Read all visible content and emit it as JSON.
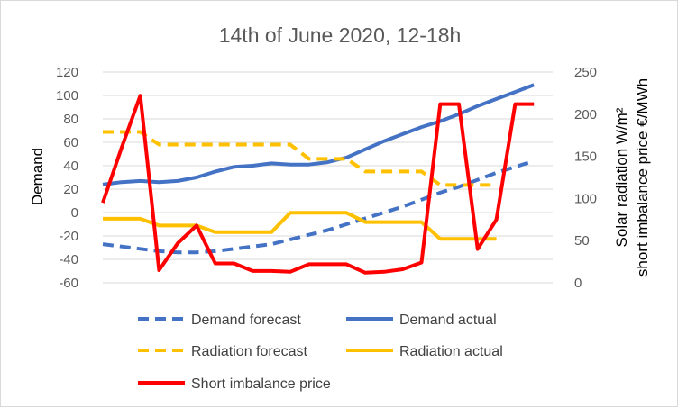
{
  "chart_data": {
    "type": "line",
    "title": "14th of June 2020, 12-18h",
    "ylabel": "Demand",
    "y2label_line1": "Solar radiation W/m²",
    "y2label_line2": "short imbalance price €/MWh",
    "ylim": [
      -60,
      120
    ],
    "y2lim": [
      0,
      250
    ],
    "yticks": [
      "120",
      "100",
      "80",
      "60",
      "40",
      "20",
      "0",
      "-20",
      "-40",
      "-60"
    ],
    "y2ticks": [
      "250",
      "200",
      "150",
      "100",
      "50",
      "0"
    ],
    "grid": true,
    "legend_position": "bottom",
    "x": [
      0,
      1,
      2,
      3,
      4,
      5,
      6,
      7,
      8,
      9,
      10,
      11,
      12,
      13,
      14,
      15,
      16,
      17,
      18,
      19,
      20,
      21,
      22,
      23,
      24
    ],
    "series": [
      {
        "name": "Demand forecast",
        "axis": "left",
        "style": "dashed",
        "color": "#4472c4",
        "values": [
          -27,
          -29,
          -31,
          -33,
          -34,
          -34,
          -33,
          -31,
          -29,
          -27,
          -23,
          -19,
          -15,
          -10,
          -5,
          0,
          5,
          11,
          17,
          22,
          28,
          34,
          39,
          44,
          null
        ]
      },
      {
        "name": "Demand actual",
        "axis": "left",
        "style": "solid",
        "color": "#4472c4",
        "values": [
          24,
          26,
          27,
          26,
          27,
          30,
          35,
          39,
          40,
          42,
          41,
          41,
          43,
          47,
          54,
          61,
          67,
          73,
          78,
          84,
          91,
          97,
          103,
          109,
          null
        ]
      },
      {
        "name": "Radiation forecast",
        "axis": "right",
        "style": "dashed",
        "color": "#ffc000",
        "values": [
          179,
          179,
          179,
          164,
          164,
          164,
          164,
          164,
          164,
          164,
          164,
          147,
          147,
          147,
          132,
          132,
          132,
          132,
          116,
          116,
          116,
          116,
          null,
          null,
          null
        ]
      },
      {
        "name": "Radiation actual",
        "axis": "right",
        "style": "solid",
        "color": "#ffc000",
        "values": [
          76,
          76,
          76,
          68,
          68,
          68,
          60,
          60,
          60,
          60,
          83,
          83,
          83,
          83,
          72,
          72,
          72,
          72,
          52,
          52,
          52,
          52,
          null,
          null,
          null
        ]
      },
      {
        "name": "Short imbalance price",
        "axis": "right",
        "style": "solid",
        "color": "#ff0000",
        "values": [
          95,
          160,
          222,
          15,
          47,
          68,
          23,
          23,
          14,
          14,
          13,
          22,
          22,
          22,
          12,
          13,
          16,
          24,
          212,
          212,
          40,
          75,
          212,
          212,
          null
        ]
      }
    ]
  }
}
